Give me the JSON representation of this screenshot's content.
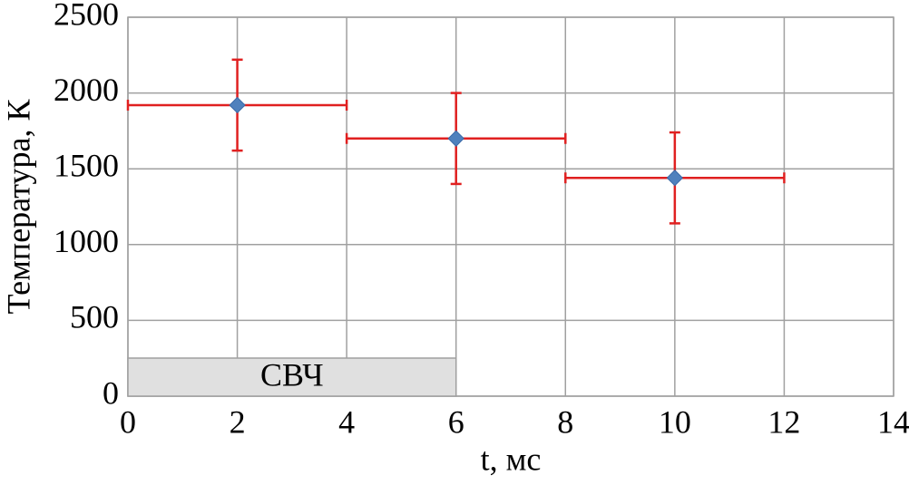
{
  "chart_data": {
    "type": "scatter",
    "xlabel": "t, мс",
    "ylabel": "Температура, К",
    "xlim": [
      0,
      14
    ],
    "xticks": [
      0,
      2,
      4,
      6,
      8,
      10,
      12,
      14
    ],
    "ylim": [
      0,
      2500
    ],
    "yticks": [
      0,
      500,
      1000,
      1500,
      2000,
      2500
    ],
    "grid": true,
    "series": [
      {
        "color": "#4f81bd",
        "error_color": "#e02020",
        "x": [
          2,
          6,
          10
        ],
        "y": [
          1920,
          1700,
          1440
        ],
        "xerr": [
          2,
          2,
          2
        ],
        "yerr": [
          300,
          300,
          300
        ]
      }
    ],
    "span": {
      "label": "СВЧ",
      "x": [
        0,
        6
      ],
      "color": "#e0e0e0"
    }
  }
}
